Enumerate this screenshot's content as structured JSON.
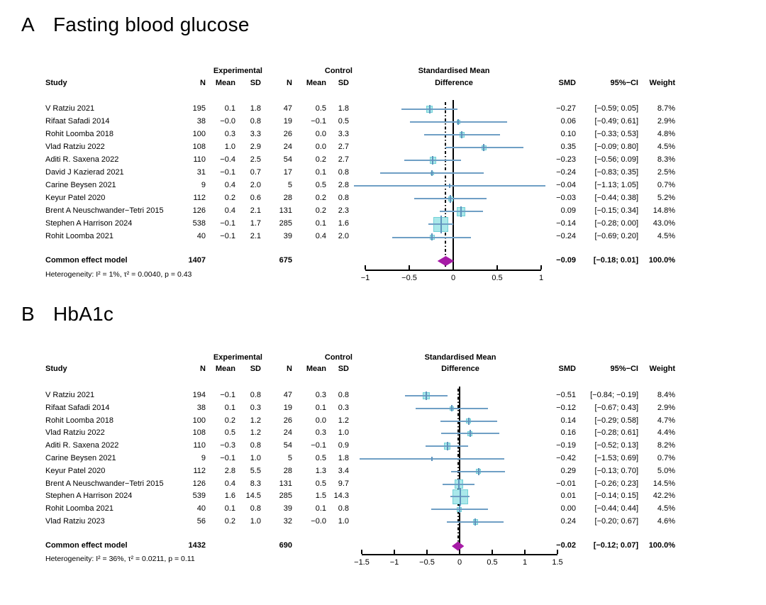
{
  "labels": {
    "study": "Study",
    "n": "N",
    "mean": "Mean",
    "sd": "SD",
    "experimental": "Experimental",
    "control": "Control",
    "smd_header_line1": "Standardised Mean",
    "smd_header_line2": "Difference",
    "smd": "SMD",
    "ci": "95%−CI",
    "weight": "Weight"
  },
  "colors": {
    "ci_line": "#6f9fc5",
    "square_fill": "#a9e8ea",
    "square_border": "#72d0d6",
    "marker_tick": "#5e93bd",
    "diamond": "#a61ba6",
    "axis": "#000000"
  },
  "chart_data": [
    {
      "type": "forest",
      "panel_label": "A",
      "title": "Fasting blood glucose",
      "xlim": [
        -1.15,
        1.1
      ],
      "pooled_line": -0.09,
      "ticks": [
        {
          "label": "−1",
          "value": -1
        },
        {
          "label": "−0.5",
          "value": -0.5
        },
        {
          "label": "0",
          "value": 0
        },
        {
          "label": "0.5",
          "value": 0.5
        },
        {
          "label": "1",
          "value": 1
        }
      ],
      "studies": [
        {
          "name": "V Ratziu 2021",
          "n1": "195",
          "mean1": "0.1",
          "sd1": "1.8",
          "n2": "47",
          "mean2": "0.5",
          "sd2": "1.8",
          "smd": "−0.27",
          "ci": "[−0.59; 0.05]",
          "weight": "8.7%",
          "est": -0.27,
          "lo": -0.59,
          "hi": 0.05,
          "w": 8.7
        },
        {
          "name": "Rifaat Safadi 2014",
          "n1": "38",
          "mean1": "−0.0",
          "sd1": "0.8",
          "n2": "19",
          "mean2": "−0.1",
          "sd2": "0.5",
          "smd": "0.06",
          "ci": "[−0.49; 0.61]",
          "weight": "2.9%",
          "est": 0.06,
          "lo": -0.49,
          "hi": 0.61,
          "w": 2.9
        },
        {
          "name": "Rohit Loomba 2018",
          "n1": "100",
          "mean1": "0.3",
          "sd1": "3.3",
          "n2": "26",
          "mean2": "0.0",
          "sd2": "3.3",
          "smd": "0.10",
          "ci": "[−0.33; 0.53]",
          "weight": "4.8%",
          "est": 0.1,
          "lo": -0.33,
          "hi": 0.53,
          "w": 4.8
        },
        {
          "name": "Vlad Ratziu 2022",
          "n1": "108",
          "mean1": "1.0",
          "sd1": "2.9",
          "n2": "24",
          "mean2": "0.0",
          "sd2": "2.7",
          "smd": "0.35",
          "ci": "[−0.09; 0.80]",
          "weight": "4.5%",
          "est": 0.35,
          "lo": -0.09,
          "hi": 0.8,
          "w": 4.5
        },
        {
          "name": "Aditi R. Saxena 2022",
          "n1": "110",
          "mean1": "−0.4",
          "sd1": "2.5",
          "n2": "54",
          "mean2": "0.2",
          "sd2": "2.7",
          "smd": "−0.23",
          "ci": "[−0.56; 0.09]",
          "weight": "8.3%",
          "est": -0.23,
          "lo": -0.56,
          "hi": 0.09,
          "w": 8.3
        },
        {
          "name": "David J Kazierad 2021",
          "n1": "31",
          "mean1": "−0.1",
          "sd1": "0.7",
          "n2": "17",
          "mean2": "0.1",
          "sd2": "0.8",
          "smd": "−0.24",
          "ci": "[−0.83; 0.35]",
          "weight": "2.5%",
          "est": -0.24,
          "lo": -0.83,
          "hi": 0.35,
          "w": 2.5
        },
        {
          "name": "Carine Beysen 2021",
          "n1": "9",
          "mean1": "0.4",
          "sd1": "2.0",
          "n2": "5",
          "mean2": "0.5",
          "sd2": "2.8",
          "smd": "−0.04",
          "ci": "[−1.13; 1.05]",
          "weight": "0.7%",
          "est": -0.04,
          "lo": -1.13,
          "hi": 1.05,
          "w": 0.7
        },
        {
          "name": "Keyur Patel 2020",
          "n1": "112",
          "mean1": "0.2",
          "sd1": "0.6",
          "n2": "28",
          "mean2": "0.2",
          "sd2": "0.8",
          "smd": "−0.03",
          "ci": "[−0.44; 0.38]",
          "weight": "5.2%",
          "est": -0.03,
          "lo": -0.44,
          "hi": 0.38,
          "w": 5.2
        },
        {
          "name": "Brent A Neuschwander−Tetri 2015",
          "n1": "126",
          "mean1": "0.4",
          "sd1": "2.1",
          "n2": "131",
          "mean2": "0.2",
          "sd2": "2.3",
          "smd": "0.09",
          "ci": "[−0.15; 0.34]",
          "weight": "14.8%",
          "est": 0.09,
          "lo": -0.15,
          "hi": 0.34,
          "w": 14.8
        },
        {
          "name": "Stephen A Harrison 2024",
          "n1": "538",
          "mean1": "−0.1",
          "sd1": "1.7",
          "n2": "285",
          "mean2": "0.1",
          "sd2": "1.6",
          "smd": "−0.14",
          "ci": "[−0.28; 0.00]",
          "weight": "43.0%",
          "est": -0.14,
          "lo": -0.28,
          "hi": 0.0,
          "w": 43.0
        },
        {
          "name": "Rohit Loomba 2021",
          "n1": "40",
          "mean1": "−0.1",
          "sd1": "2.1",
          "n2": "39",
          "mean2": "0.4",
          "sd2": "2.0",
          "smd": "−0.24",
          "ci": "[−0.69; 0.20]",
          "weight": "4.5%",
          "est": -0.24,
          "lo": -0.69,
          "hi": 0.2,
          "w": 4.5
        }
      ],
      "common": {
        "label": "Common effect model",
        "n1": "1407",
        "n2": "675",
        "smd": "−0.09",
        "ci": "[−0.18; 0.01]",
        "weight": "100.0%",
        "est": -0.09,
        "lo": -0.18,
        "hi": 0.01
      },
      "heterogeneity": "Heterogeneity: I² = 1%, τ² = 0.0040, p = 0.43"
    },
    {
      "type": "forest",
      "panel_label": "B",
      "title": "HbA1c",
      "xlim": [
        -1.55,
        1.5
      ],
      "pooled_line": -0.02,
      "ticks": [
        {
          "label": "−1.5",
          "value": -1.5
        },
        {
          "label": "−1",
          "value": -1
        },
        {
          "label": "−0.5",
          "value": -0.5
        },
        {
          "label": "0",
          "value": 0
        },
        {
          "label": "0.5",
          "value": 0.5
        },
        {
          "label": "1",
          "value": 1
        },
        {
          "label": "1.5",
          "value": 1.5
        }
      ],
      "studies": [
        {
          "name": "V Ratziu 2021",
          "n1": "194",
          "mean1": "−0.1",
          "sd1": "0.8",
          "n2": "47",
          "mean2": "0.3",
          "sd2": "0.8",
          "smd": "−0.51",
          "ci": "[−0.84; −0.19]",
          "weight": "8.4%",
          "est": -0.51,
          "lo": -0.84,
          "hi": -0.19,
          "w": 8.4
        },
        {
          "name": "Rifaat Safadi 2014",
          "n1": "38",
          "mean1": "0.1",
          "sd1": "0.3",
          "n2": "19",
          "mean2": "0.1",
          "sd2": "0.3",
          "smd": "−0.12",
          "ci": "[−0.67; 0.43]",
          "weight": "2.9%",
          "est": -0.12,
          "lo": -0.67,
          "hi": 0.43,
          "w": 2.9
        },
        {
          "name": "Rohit Loomba 2018",
          "n1": "100",
          "mean1": "0.2",
          "sd1": "1.2",
          "n2": "26",
          "mean2": "0.0",
          "sd2": "1.2",
          "smd": "0.14",
          "ci": "[−0.29; 0.58]",
          "weight": "4.7%",
          "est": 0.14,
          "lo": -0.29,
          "hi": 0.58,
          "w": 4.7
        },
        {
          "name": "Vlad Ratziu 2022",
          "n1": "108",
          "mean1": "0.5",
          "sd1": "1.2",
          "n2": "24",
          "mean2": "0.3",
          "sd2": "1.0",
          "smd": "0.16",
          "ci": "[−0.28; 0.61]",
          "weight": "4.4%",
          "est": 0.16,
          "lo": -0.28,
          "hi": 0.61,
          "w": 4.4
        },
        {
          "name": "Aditi R. Saxena 2022",
          "n1": "110",
          "mean1": "−0.3",
          "sd1": "0.8",
          "n2": "54",
          "mean2": "−0.1",
          "sd2": "0.9",
          "smd": "−0.19",
          "ci": "[−0.52; 0.13]",
          "weight": "8.2%",
          "est": -0.19,
          "lo": -0.52,
          "hi": 0.13,
          "w": 8.2
        },
        {
          "name": "Carine Beysen 2021",
          "n1": "9",
          "mean1": "−0.1",
          "sd1": "1.0",
          "n2": "5",
          "mean2": "0.5",
          "sd2": "1.8",
          "smd": "−0.42",
          "ci": "[−1.53; 0.69]",
          "weight": "0.7%",
          "est": -0.42,
          "lo": -1.53,
          "hi": 0.69,
          "w": 0.7
        },
        {
          "name": "Keyur Patel 2020",
          "n1": "112",
          "mean1": "2.8",
          "sd1": "5.5",
          "n2": "28",
          "mean2": "1.3",
          "sd2": "3.4",
          "smd": "0.29",
          "ci": "[−0.13; 0.70]",
          "weight": "5.0%",
          "est": 0.29,
          "lo": -0.13,
          "hi": 0.7,
          "w": 5.0
        },
        {
          "name": "Brent A Neuschwander−Tetri 2015",
          "n1": "126",
          "mean1": "0.4",
          "sd1": "8.3",
          "n2": "131",
          "mean2": "0.5",
          "sd2": "9.7",
          "smd": "−0.01",
          "ci": "[−0.26; 0.23]",
          "weight": "14.5%",
          "est": -0.01,
          "lo": -0.26,
          "hi": 0.23,
          "w": 14.5
        },
        {
          "name": "Stephen A Harrison 2024",
          "n1": "539",
          "mean1": "1.6",
          "sd1": "14.5",
          "n2": "285",
          "mean2": "1.5",
          "sd2": "14.3",
          "smd": "0.01",
          "ci": "[−0.14; 0.15]",
          "weight": "42.2%",
          "est": 0.01,
          "lo": -0.14,
          "hi": 0.15,
          "w": 42.2
        },
        {
          "name": "Rohit Loomba 2021",
          "n1": "40",
          "mean1": "0.1",
          "sd1": "0.8",
          "n2": "39",
          "mean2": "0.1",
          "sd2": "0.8",
          "smd": "0.00",
          "ci": "[−0.44; 0.44]",
          "weight": "4.5%",
          "est": 0.0,
          "lo": -0.44,
          "hi": 0.44,
          "w": 4.5
        },
        {
          "name": "Vlad Ratziu 2023",
          "n1": "56",
          "mean1": "0.2",
          "sd1": "1.0",
          "n2": "32",
          "mean2": "−0.0",
          "sd2": "1.0",
          "smd": "0.24",
          "ci": "[−0.20; 0.67]",
          "weight": "4.6%",
          "est": 0.24,
          "lo": -0.2,
          "hi": 0.67,
          "w": 4.6
        }
      ],
      "common": {
        "label": "Common effect model",
        "n1": "1432",
        "n2": "690",
        "smd": "−0.02",
        "ci": "[−0.12; 0.07]",
        "weight": "100.0%",
        "est": -0.02,
        "lo": -0.12,
        "hi": 0.07
      },
      "heterogeneity": "Heterogeneity: I² = 36%, τ² = 0.0211, p = 0.11"
    }
  ]
}
